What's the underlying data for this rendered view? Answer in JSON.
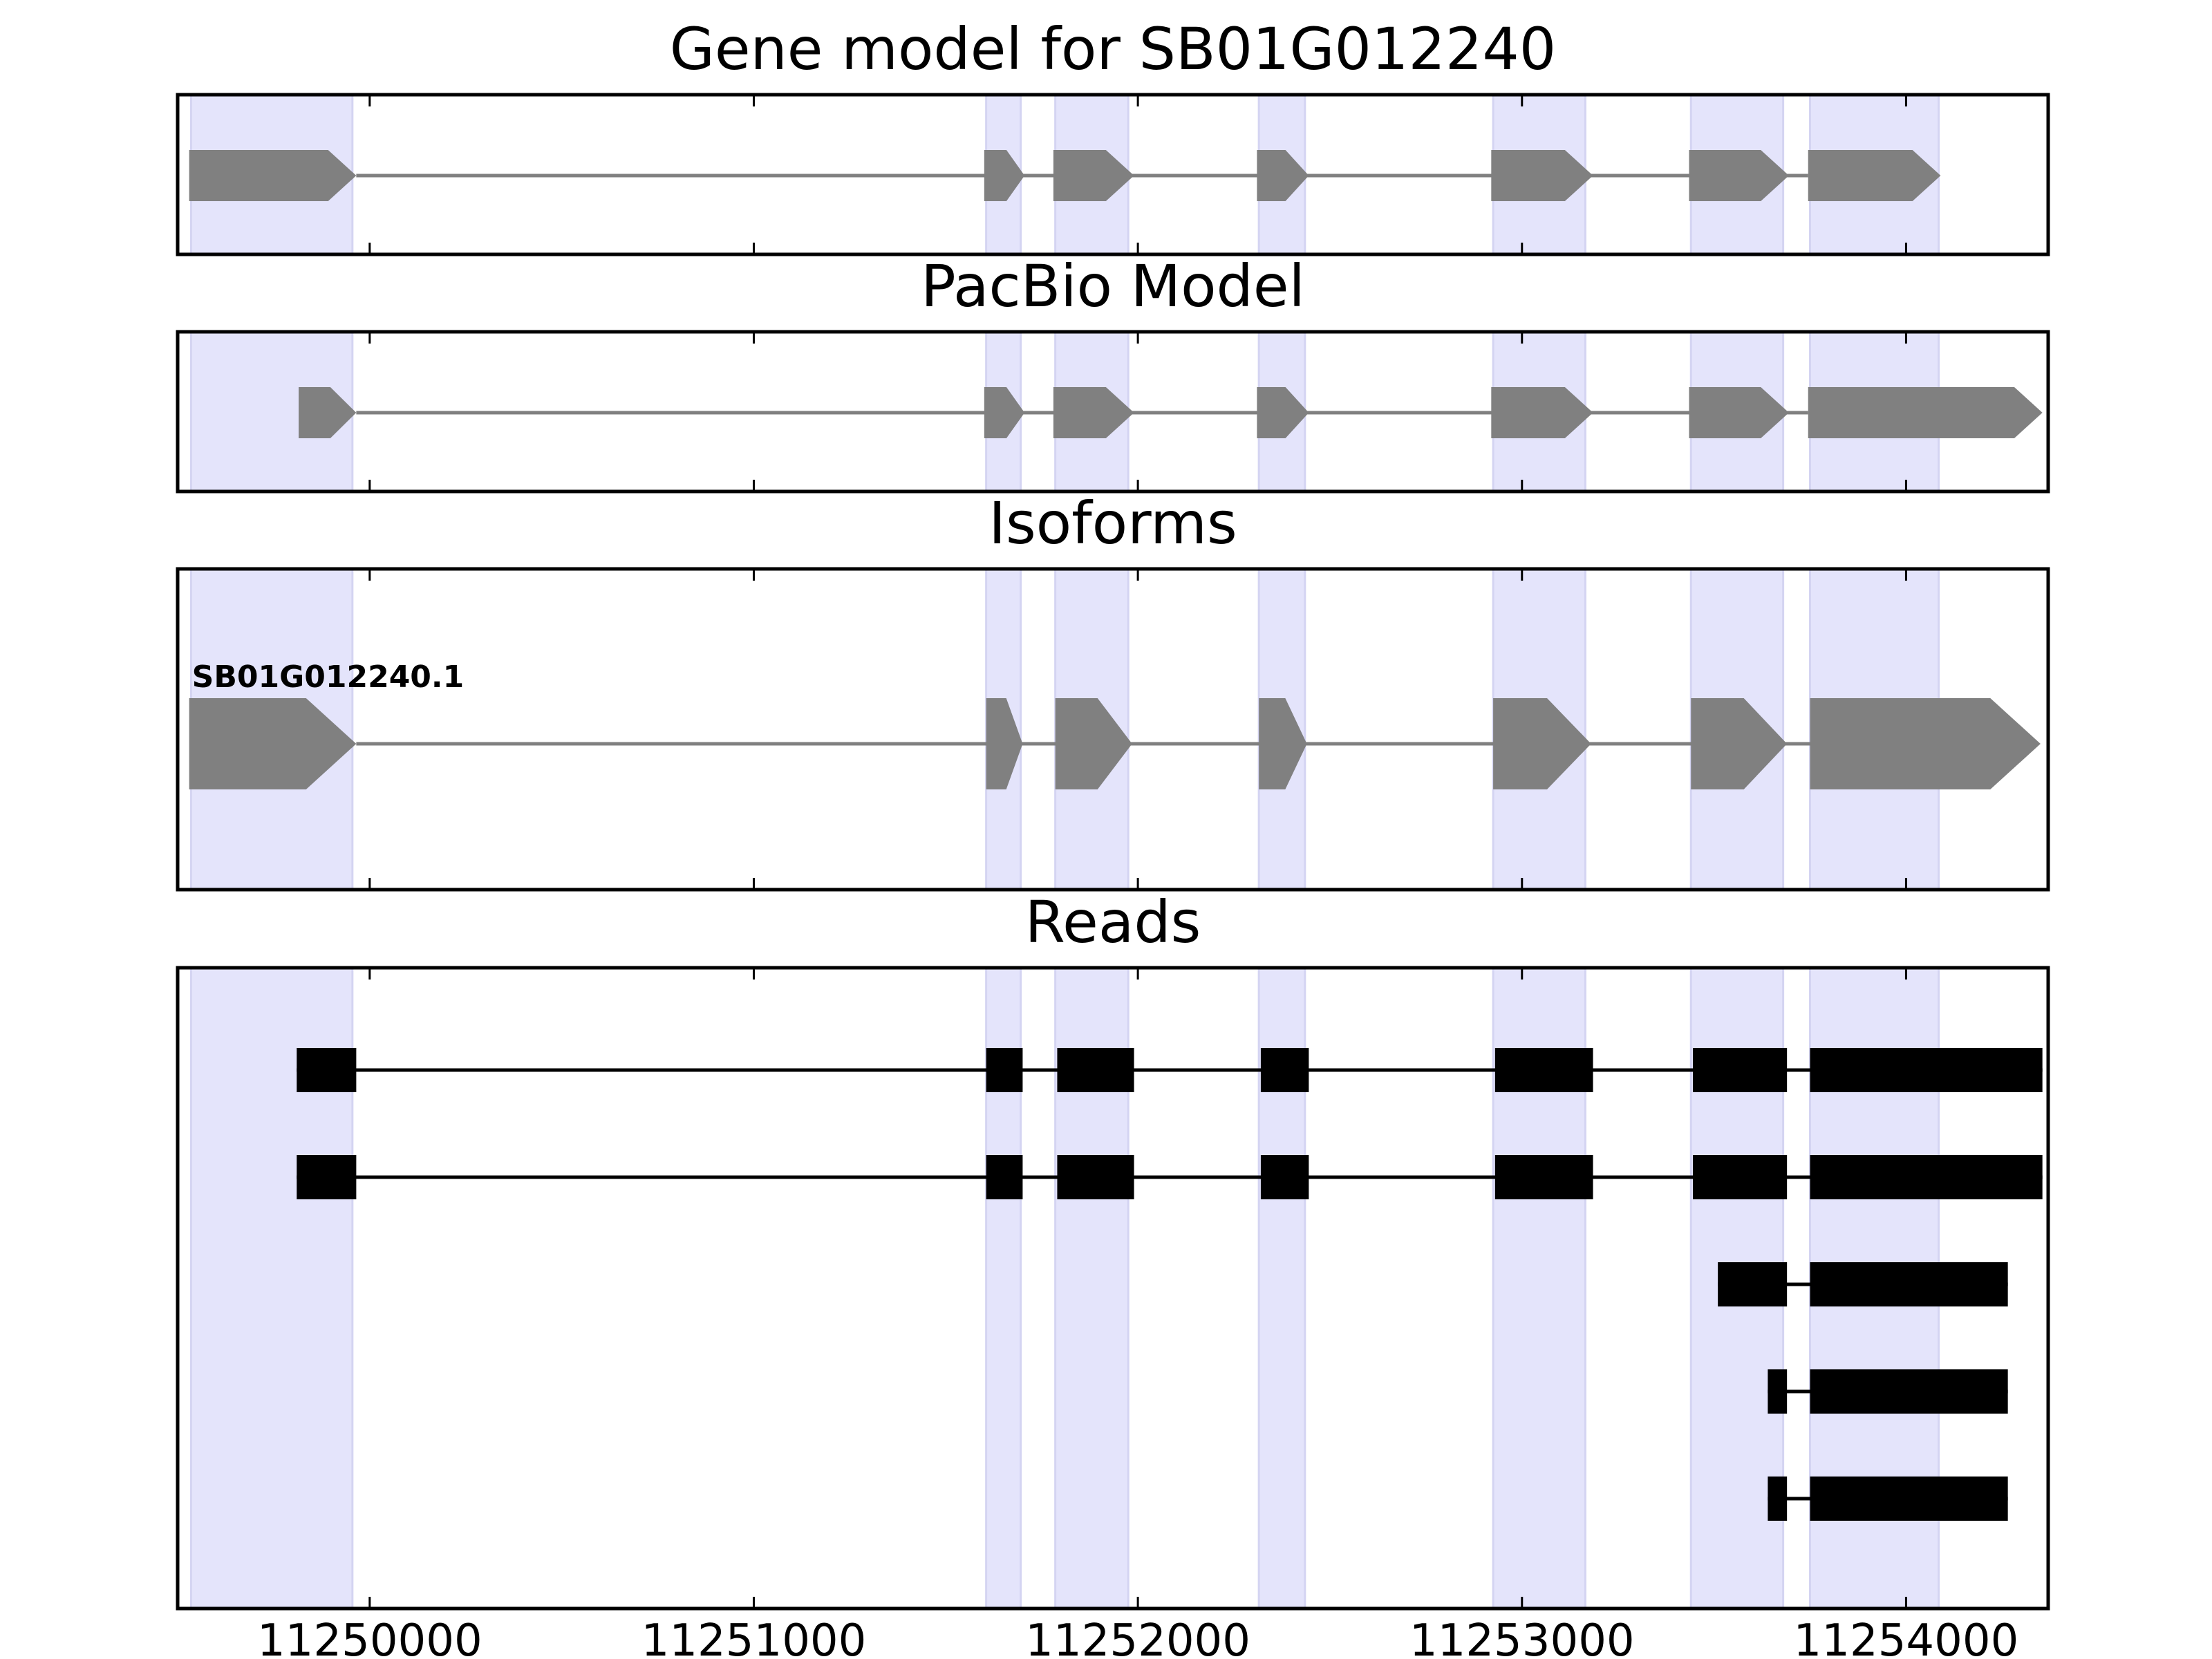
{
  "chart_data": {
    "type": "gene-structure",
    "xlim": [
      11249500,
      11254370
    ],
    "x_ticks": [
      11250000,
      11251000,
      11252000,
      11253000,
      11254000
    ],
    "x_tick_labels": [
      "11250000",
      "11251000",
      "11252000",
      "11253000",
      "11254000"
    ],
    "grid": false,
    "colors": {
      "highlight": "#e4e4fb",
      "highlight_edge": "#d4d4f2",
      "model_exon": "#808080",
      "intron_line": "#808080",
      "read_exon": "#000000",
      "read_line": "#000000",
      "axes": "#000000"
    },
    "highlight_regions": [
      [
        11249535,
        11249955
      ],
      [
        11251605,
        11251695
      ],
      [
        11251785,
        11251975
      ],
      [
        11252315,
        11252435
      ],
      [
        11252925,
        11253165
      ],
      [
        11253440,
        11253680
      ],
      [
        11253750,
        11254085
      ]
    ],
    "panels": [
      {
        "title": "Gene model for SB01G012240",
        "strand": "+",
        "transcripts": [
          {
            "label": "",
            "exons": [
              [
                11249530,
                11249965
              ],
              [
                11251600,
                11251705
              ],
              [
                11251780,
                11251990
              ],
              [
                11252310,
                11252445
              ],
              [
                11252920,
                11253185
              ],
              [
                11253435,
                11253695
              ],
              [
                11253745,
                11254090
              ]
            ]
          }
        ]
      },
      {
        "title": "PacBio Model",
        "strand": "+",
        "transcripts": [
          {
            "label": "",
            "exons": [
              [
                11249815,
                11249965
              ],
              [
                11251600,
                11251705
              ],
              [
                11251780,
                11251990
              ],
              [
                11252310,
                11252445
              ],
              [
                11252920,
                11253185
              ],
              [
                11253435,
                11253695
              ],
              [
                11253745,
                11254355
              ]
            ]
          }
        ]
      },
      {
        "title": "Isoforms",
        "strand": "+",
        "transcripts": [
          {
            "label": "SB01G012240.1",
            "exons": [
              [
                11249530,
                11249965
              ],
              [
                11251605,
                11251700
              ],
              [
                11251785,
                11251985
              ],
              [
                11252315,
                11252440
              ],
              [
                11252925,
                11253180
              ],
              [
                11253440,
                11253690
              ],
              [
                11253750,
                11254350
              ]
            ]
          }
        ]
      },
      {
        "title": "Reads",
        "reads": [
          {
            "exons": [
              [
                11249810,
                11249965
              ],
              [
                11251605,
                11251700
              ],
              [
                11251790,
                11251990
              ],
              [
                11252320,
                11252445
              ],
              [
                11252930,
                11253185
              ],
              [
                11253445,
                11253690
              ],
              [
                11253750,
                11254355
              ]
            ]
          },
          {
            "exons": [
              [
                11249810,
                11249965
              ],
              [
                11251605,
                11251700
              ],
              [
                11251790,
                11251990
              ],
              [
                11252320,
                11252445
              ],
              [
                11252930,
                11253185
              ],
              [
                11253445,
                11253690
              ],
              [
                11253750,
                11254355
              ]
            ]
          },
          {
            "exons": [
              [
                11253510,
                11253690
              ],
              [
                11253750,
                11254265
              ]
            ]
          },
          {
            "exons": [
              [
                11253640,
                11253690
              ],
              [
                11253750,
                11254265
              ]
            ]
          },
          {
            "exons": [
              [
                11253640,
                11253690
              ],
              [
                11253750,
                11254265
              ]
            ]
          }
        ]
      }
    ]
  }
}
